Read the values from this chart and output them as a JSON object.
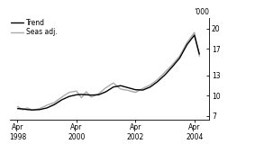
{
  "ylabel_right": "’000",
  "xtick_labels": [
    "Apr\n1998",
    "Apr\n2000",
    "Apr\n2002",
    "Apr\n2004"
  ],
  "xtick_positions": [
    1998.25,
    2000.25,
    2002.25,
    2004.25
  ],
  "yticks": [
    7,
    10,
    13,
    17,
    20
  ],
  "ylim": [
    6.5,
    21.5
  ],
  "xlim": [
    1998.0,
    2004.75
  ],
  "legend_entries": [
    "Trend",
    "Seas adj."
  ],
  "trend_color": "#000000",
  "seas_color": "#aaaaaa",
  "trend_linewidth": 1.0,
  "seas_linewidth": 1.0,
  "background_color": "#ffffff",
  "trend_x": [
    1998.25,
    1998.42,
    1998.58,
    1998.75,
    1999.0,
    1999.25,
    1999.5,
    1999.75,
    2000.0,
    2000.25,
    2000.42,
    2000.58,
    2000.75,
    2001.0,
    2001.25,
    2001.5,
    2001.75,
    2002.0,
    2002.25,
    2002.5,
    2002.75,
    2003.0,
    2003.25,
    2003.5,
    2003.75,
    2004.0,
    2004.25,
    2004.42
  ],
  "trend_y": [
    8.1,
    8.05,
    7.95,
    7.9,
    7.95,
    8.2,
    8.7,
    9.4,
    9.9,
    10.15,
    10.2,
    10.15,
    10.1,
    10.15,
    10.6,
    11.3,
    11.5,
    11.2,
    10.9,
    10.85,
    11.3,
    12.1,
    13.1,
    14.3,
    15.6,
    17.6,
    19.0,
    16.2
  ],
  "seas_x": [
    1998.25,
    1998.42,
    1998.58,
    1998.75,
    1999.0,
    1999.25,
    1999.5,
    1999.75,
    2000.0,
    2000.25,
    2000.42,
    2000.58,
    2000.75,
    2001.0,
    2001.25,
    2001.5,
    2001.75,
    2002.0,
    2002.25,
    2002.5,
    2002.75,
    2003.0,
    2003.25,
    2003.5,
    2003.75,
    2004.0,
    2004.25,
    2004.42
  ],
  "seas_y": [
    8.4,
    7.9,
    8.2,
    7.85,
    8.1,
    8.6,
    9.0,
    9.8,
    10.5,
    10.7,
    9.7,
    10.6,
    9.8,
    10.3,
    11.2,
    11.9,
    11.0,
    10.8,
    10.5,
    11.1,
    11.6,
    12.4,
    13.5,
    14.6,
    15.9,
    17.9,
    19.4,
    15.9
  ]
}
